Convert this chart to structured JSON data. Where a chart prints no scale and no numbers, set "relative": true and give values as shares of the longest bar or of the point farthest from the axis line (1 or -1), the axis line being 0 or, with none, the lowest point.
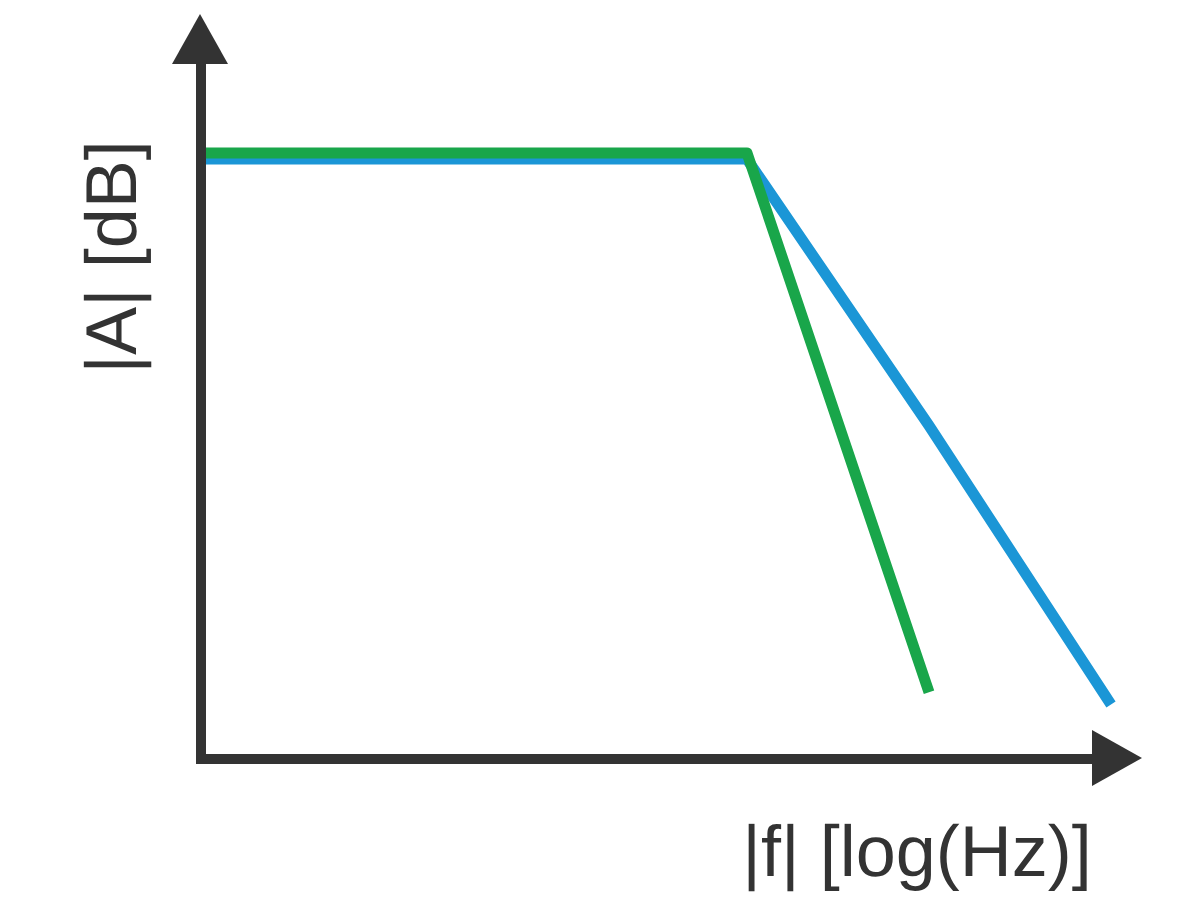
{
  "chart_data": {
    "type": "line",
    "relative": true,
    "xlabel": "|f| [log(Hz)]",
    "ylabel": "|A| [dB]",
    "tick_labels": false,
    "categories": [
      null,
      null,
      null,
      null,
      null,
      null
    ],
    "series": [
      {
        "color": "#1b96d6",
        "values": [
          0.99,
          0.99,
          0.99,
          0.99,
          0.55,
          0.09
        ]
      },
      {
        "color": "#19a64a",
        "values": [
          1,
          1,
          1,
          1,
          0.11,
          null
        ]
      }
    ]
  }
}
